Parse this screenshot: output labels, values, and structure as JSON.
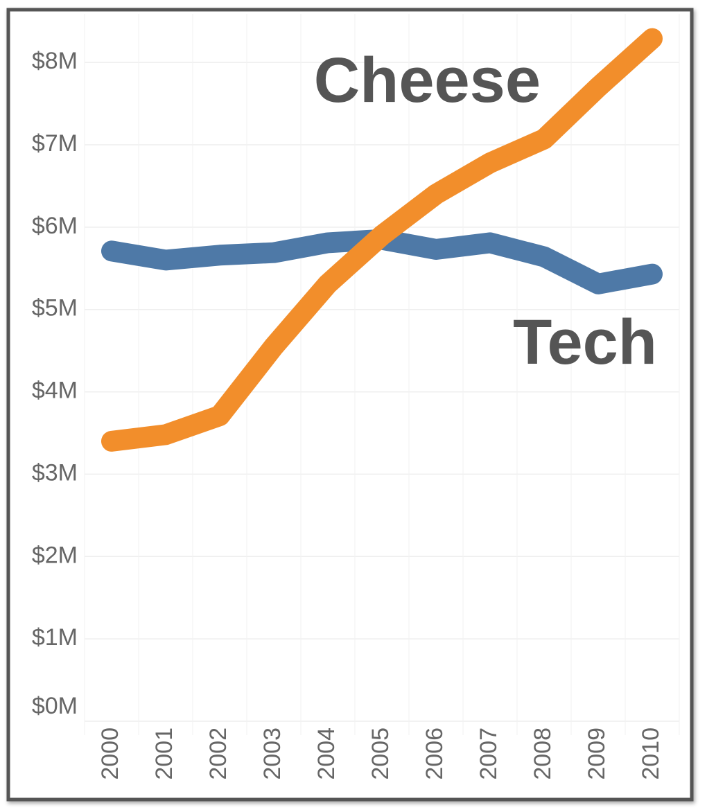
{
  "chart_data": {
    "type": "line",
    "categories": [
      "2000",
      "2001",
      "2002",
      "2003",
      "2004",
      "2005",
      "2006",
      "2007",
      "2008",
      "2009",
      "2010"
    ],
    "series": [
      {
        "name": "Tech",
        "color": "#4e79a7",
        "values": [
          5.71,
          5.6,
          5.66,
          5.69,
          5.81,
          5.85,
          5.73,
          5.81,
          5.64,
          5.31,
          5.43
        ]
      },
      {
        "name": "Cheese",
        "color": "#f28e2b",
        "values": [
          3.4,
          3.48,
          3.71,
          4.55,
          5.31,
          5.9,
          6.4,
          6.78,
          7.07,
          7.7,
          8.29
        ]
      }
    ],
    "ylim": [
      0,
      8.59
    ],
    "yticks": [
      {
        "value": 0,
        "label": "$0M"
      },
      {
        "value": 1,
        "label": "$1M"
      },
      {
        "value": 2,
        "label": "$2M"
      },
      {
        "value": 3,
        "label": "$3M"
      },
      {
        "value": 4,
        "label": "$4M"
      },
      {
        "value": 5,
        "label": "$5M"
      },
      {
        "value": 6,
        "label": "$6M"
      },
      {
        "value": 7,
        "label": "$7M"
      },
      {
        "value": 8,
        "label": "$8M"
      }
    ],
    "grid": true
  }
}
